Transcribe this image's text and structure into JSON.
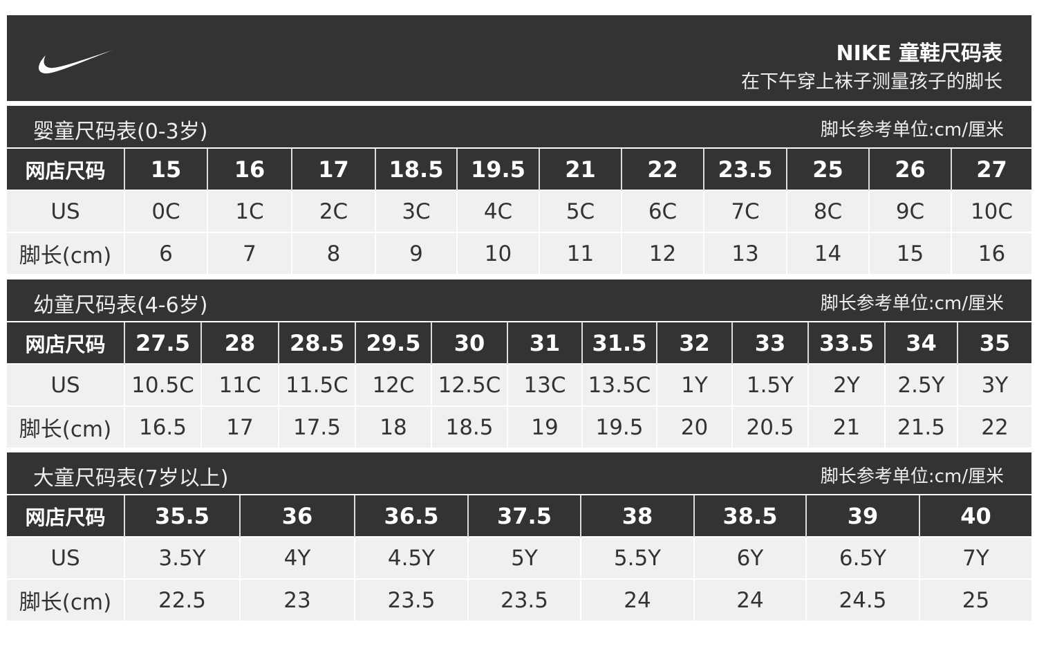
{
  "header": {
    "logo": "NIKE swoosh",
    "title": "NIKE 童鞋尺码表",
    "subtitle": "在下午穿上袜子测量孩子的脚长"
  },
  "colors": {
    "dark": "#333333",
    "light_row": "#f0f0f0",
    "text_light": "#ffffff"
  },
  "sections": [
    {
      "title": "婴童尺码表(0-3岁)",
      "unit_note": "脚长参考单位:cm/厘米",
      "row_labels": [
        "网店尺码",
        "US",
        "脚长(cm)"
      ],
      "sizes": [
        "15",
        "16",
        "17",
        "18.5",
        "19.5",
        "21",
        "22",
        "23.5",
        "25",
        "26",
        "27"
      ],
      "us": [
        "0C",
        "1C",
        "2C",
        "3C",
        "4C",
        "5C",
        "6C",
        "7C",
        "8C",
        "9C",
        "10C"
      ],
      "foot_cm": [
        "6",
        "7",
        "8",
        "9",
        "10",
        "11",
        "12",
        "13",
        "14",
        "15",
        "16"
      ]
    },
    {
      "title": "幼童尺码表(4-6岁)",
      "unit_note": "脚长参考单位:cm/厘米",
      "row_labels": [
        "网店尺码",
        "US",
        "脚长(cm)"
      ],
      "sizes": [
        "27.5",
        "28",
        "28.5",
        "29.5",
        "30",
        "31",
        "31.5",
        "32",
        "33",
        "33.5",
        "34",
        "35"
      ],
      "us": [
        "10.5C",
        "11C",
        "11.5C",
        "12C",
        "12.5C",
        "13C",
        "13.5C",
        "1Y",
        "1.5Y",
        "2Y",
        "2.5Y",
        "3Y"
      ],
      "foot_cm": [
        "16.5",
        "17",
        "17.5",
        "18",
        "18.5",
        "19",
        "19.5",
        "20",
        "20.5",
        "21",
        "21.5",
        "22"
      ]
    },
    {
      "title": "大童尺码表(7岁以上)",
      "unit_note": "脚长参考单位:cm/厘米",
      "row_labels": [
        "网店尺码",
        "US",
        "脚长(cm)"
      ],
      "sizes": [
        "35.5",
        "36",
        "36.5",
        "37.5",
        "38",
        "38.5",
        "39",
        "40"
      ],
      "us": [
        "3.5Y",
        "4Y",
        "4.5Y",
        "5Y",
        "5.5Y",
        "6Y",
        "6.5Y",
        "7Y"
      ],
      "foot_cm": [
        "22.5",
        "23",
        "23.5",
        "23.5",
        "24",
        "24",
        "24.5",
        "25"
      ]
    }
  ]
}
